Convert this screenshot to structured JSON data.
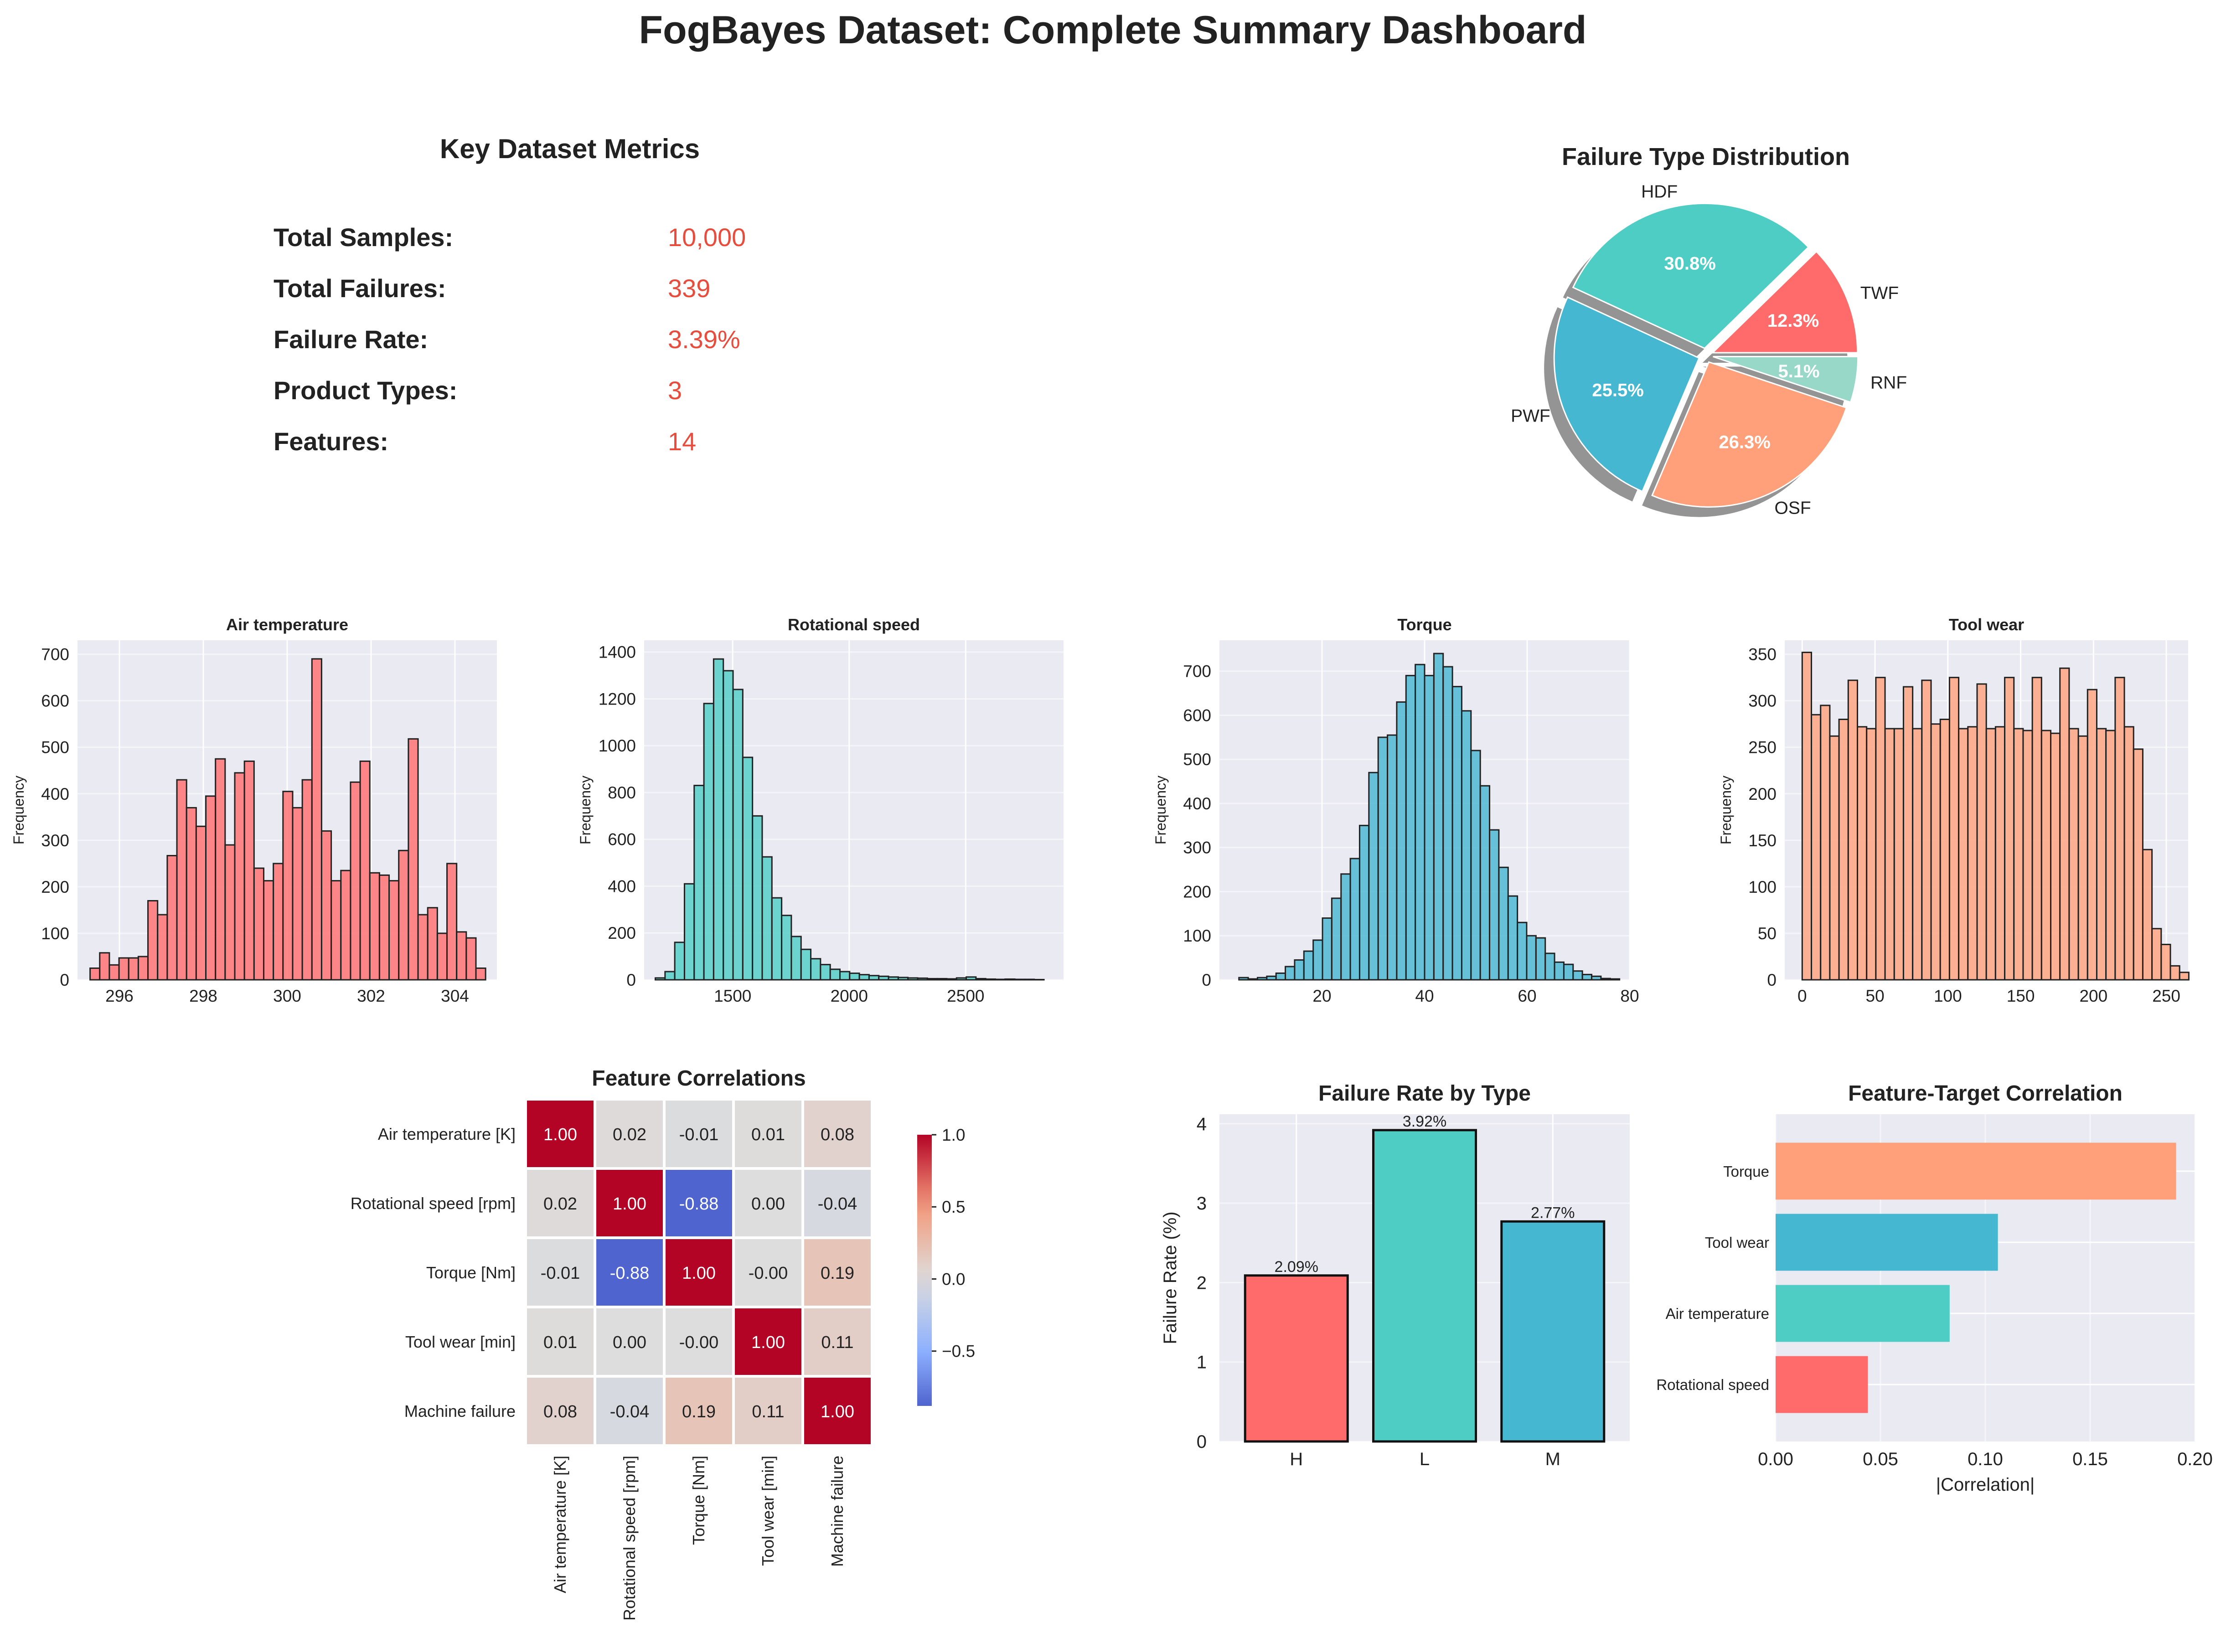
{
  "title": "FogBayes Dataset: Complete Summary Dashboard",
  "colors": {
    "red": "#ff6b6b",
    "teal": "#4ecdc4",
    "blue": "#45b7d1",
    "salmon": "#ffa07a",
    "mint": "#98d8c8",
    "accent": "#e74c3c",
    "panel_bg": "#eaeaf2",
    "grid": "#ffffff"
  },
  "metrics": {
    "title": "Key Dataset Metrics",
    "items": [
      {
        "label": "Total Samples:",
        "value": "10,000"
      },
      {
        "label": "Total Failures:",
        "value": "339"
      },
      {
        "label": "Failure Rate:",
        "value": "3.39%"
      },
      {
        "label": "Product Types:",
        "value": "3"
      },
      {
        "label": "Features:",
        "value": "14"
      }
    ]
  },
  "chart_data": [
    {
      "id": "pie",
      "type": "pie",
      "title": "Failure Type Distribution",
      "labels": [
        "TWF",
        "HDF",
        "PWF",
        "OSF",
        "RNF"
      ],
      "values": [
        12.3,
        30.8,
        25.5,
        26.3,
        5.1
      ],
      "pct_labels": [
        "12.3%",
        "30.8%",
        "25.5%",
        "26.3%",
        "5.1%"
      ],
      "colors": [
        "#ff6b6b",
        "#4ecdc4",
        "#45b7d1",
        "#ffa07a",
        "#98d8c8"
      ],
      "exploded": true,
      "shadow": true,
      "start_angle_deg": 0
    },
    {
      "id": "hist-air",
      "type": "bar",
      "title": "Air temperature",
      "ylabel": "Frequency",
      "color": "#ff6b6b",
      "xlim": [
        295,
        305
      ],
      "ylim": [
        0,
        730
      ],
      "x_ticks": [
        296,
        298,
        300,
        302,
        304
      ],
      "y_ticks": [
        0,
        100,
        200,
        300,
        400,
        500,
        600,
        700
      ],
      "bin_start": 295.3,
      "bin_width": 0.23,
      "values": [
        25,
        58,
        32,
        47,
        47,
        50,
        170,
        140,
        267,
        430,
        370,
        330,
        395,
        475,
        290,
        445,
        470,
        240,
        213,
        250,
        405,
        370,
        430,
        690,
        320,
        213,
        235,
        425,
        470,
        230,
        225,
        213,
        278,
        518,
        140,
        155,
        100,
        250,
        103,
        90,
        25
      ]
    },
    {
      "id": "hist-rot",
      "type": "bar",
      "title": "Rotational speed",
      "ylabel": "Frequency",
      "color": "#4ecdc4",
      "xlim": [
        1120,
        2920
      ],
      "ylim": [
        0,
        1450
      ],
      "x_ticks": [
        1500,
        2000,
        2500
      ],
      "y_ticks": [
        0,
        200,
        400,
        600,
        800,
        1000,
        1200,
        1400
      ],
      "bin_start": 1168,
      "bin_width": 41.7,
      "values": [
        8,
        35,
        160,
        410,
        830,
        1180,
        1370,
        1320,
        1240,
        950,
        700,
        525,
        350,
        275,
        185,
        130,
        90,
        65,
        45,
        35,
        28,
        22,
        18,
        15,
        12,
        10,
        8,
        7,
        5,
        5,
        4,
        8,
        12,
        5,
        3,
        2,
        3,
        2,
        2,
        1
      ]
    },
    {
      "id": "hist-torque",
      "type": "bar",
      "title": "Torque",
      "ylabel": "Frequency",
      "color": "#45b7d1",
      "xlim": [
        0,
        80
      ],
      "ylim": [
        0,
        770
      ],
      "x_ticks": [
        20,
        40,
        60,
        80
      ],
      "y_ticks": [
        0,
        100,
        200,
        300,
        400,
        500,
        600,
        700
      ],
      "bin_start": 3.8,
      "bin_width": 1.81,
      "values": [
        5,
        2,
        5,
        8,
        15,
        30,
        45,
        65,
        90,
        140,
        185,
        240,
        275,
        350,
        470,
        550,
        555,
        630,
        690,
        715,
        690,
        740,
        710,
        665,
        610,
        520,
        440,
        340,
        255,
        190,
        130,
        100,
        95,
        60,
        40,
        35,
        20,
        12,
        8,
        3,
        2
      ]
    },
    {
      "id": "hist-tool",
      "type": "bar",
      "title": "Tool wear",
      "ylabel": "Frequency",
      "color": "#ffa07a",
      "xlim": [
        -12,
        265
      ],
      "ylim": [
        0,
        365
      ],
      "x_ticks": [
        0,
        50,
        100,
        150,
        200,
        250
      ],
      "y_ticks": [
        0,
        50,
        100,
        150,
        200,
        250,
        300,
        350
      ],
      "bin_start": 0,
      "bin_width": 6.32,
      "values": [
        352,
        285,
        295,
        262,
        280,
        322,
        272,
        270,
        325,
        270,
        270,
        315,
        270,
        322,
        275,
        280,
        325,
        270,
        272,
        318,
        270,
        272,
        325,
        270,
        268,
        325,
        268,
        265,
        335,
        270,
        262,
        312,
        270,
        268,
        325,
        272,
        248,
        140,
        55,
        38,
        15,
        8
      ]
    },
    {
      "id": "heatmap",
      "type": "heatmap",
      "title": "Feature Correlations",
      "rows": [
        "Air temperature [K]",
        "Rotational speed [rpm]",
        "Torque [Nm]",
        "Tool wear [min]",
        "Machine failure"
      ],
      "cols": [
        "Air temperature [K]",
        "Rotational speed [rpm]",
        "Torque [Nm]",
        "Tool wear [min]",
        "Machine failure"
      ],
      "values": [
        [
          1.0,
          0.02,
          -0.01,
          0.01,
          0.08
        ],
        [
          0.02,
          1.0,
          -0.88,
          0.0,
          -0.04
        ],
        [
          -0.01,
          -0.88,
          1.0,
          -0.0,
          0.19
        ],
        [
          0.01,
          0.0,
          -0.0,
          1.0,
          0.11
        ],
        [
          0.08,
          -0.04,
          0.19,
          0.11,
          1.0
        ]
      ],
      "cell_text": [
        [
          "1.00",
          "0.02",
          "-0.01",
          "0.01",
          "0.08"
        ],
        [
          "0.02",
          "1.00",
          "-0.88",
          "0.00",
          "-0.04"
        ],
        [
          "-0.01",
          "-0.88",
          "1.00",
          "-0.00",
          "0.19"
        ],
        [
          "0.01",
          "0.00",
          "-0.00",
          "1.00",
          "0.11"
        ],
        [
          "0.08",
          "-0.04",
          "0.19",
          "0.11",
          "1.00"
        ]
      ],
      "colorbar": {
        "min": -0.88,
        "max": 1.0,
        "ticks": [
          -0.5,
          0.0,
          0.5,
          1.0
        ],
        "tick_labels": [
          "−0.5",
          "0.0",
          "0.5",
          "1.0"
        ],
        "colormap": "coolwarm"
      }
    },
    {
      "id": "bar-type",
      "type": "bar",
      "title": "Failure Rate by Type",
      "categories": [
        "H",
        "L",
        "M"
      ],
      "values": [
        2.09,
        3.92,
        2.77
      ],
      "labels": [
        "2.09%",
        "3.92%",
        "2.77%"
      ],
      "ylabel": "Failure Rate (%)",
      "ylim": [
        0,
        4.12
      ],
      "y_ticks": [
        0,
        1,
        2,
        3,
        4
      ],
      "colors": [
        "#ff6b6b",
        "#4ecdc4",
        "#45b7d1"
      ]
    },
    {
      "id": "barh-corr",
      "type": "bar",
      "orientation": "horizontal",
      "title": "Feature-Target Correlation",
      "categories": [
        "Rotational speed",
        "Air temperature",
        "Tool wear",
        "Torque"
      ],
      "values": [
        0.044,
        0.083,
        0.106,
        0.191
      ],
      "xlabel": "|Correlation|",
      "xlim": [
        0,
        0.2
      ],
      "x_ticks": [
        0.0,
        0.05,
        0.1,
        0.15,
        0.2
      ],
      "x_tick_labels": [
        "0.00",
        "0.05",
        "0.10",
        "0.15",
        "0.20"
      ],
      "colors": [
        "#ff6b6b",
        "#4ecdc4",
        "#45b7d1",
        "#ffa07a"
      ]
    }
  ]
}
